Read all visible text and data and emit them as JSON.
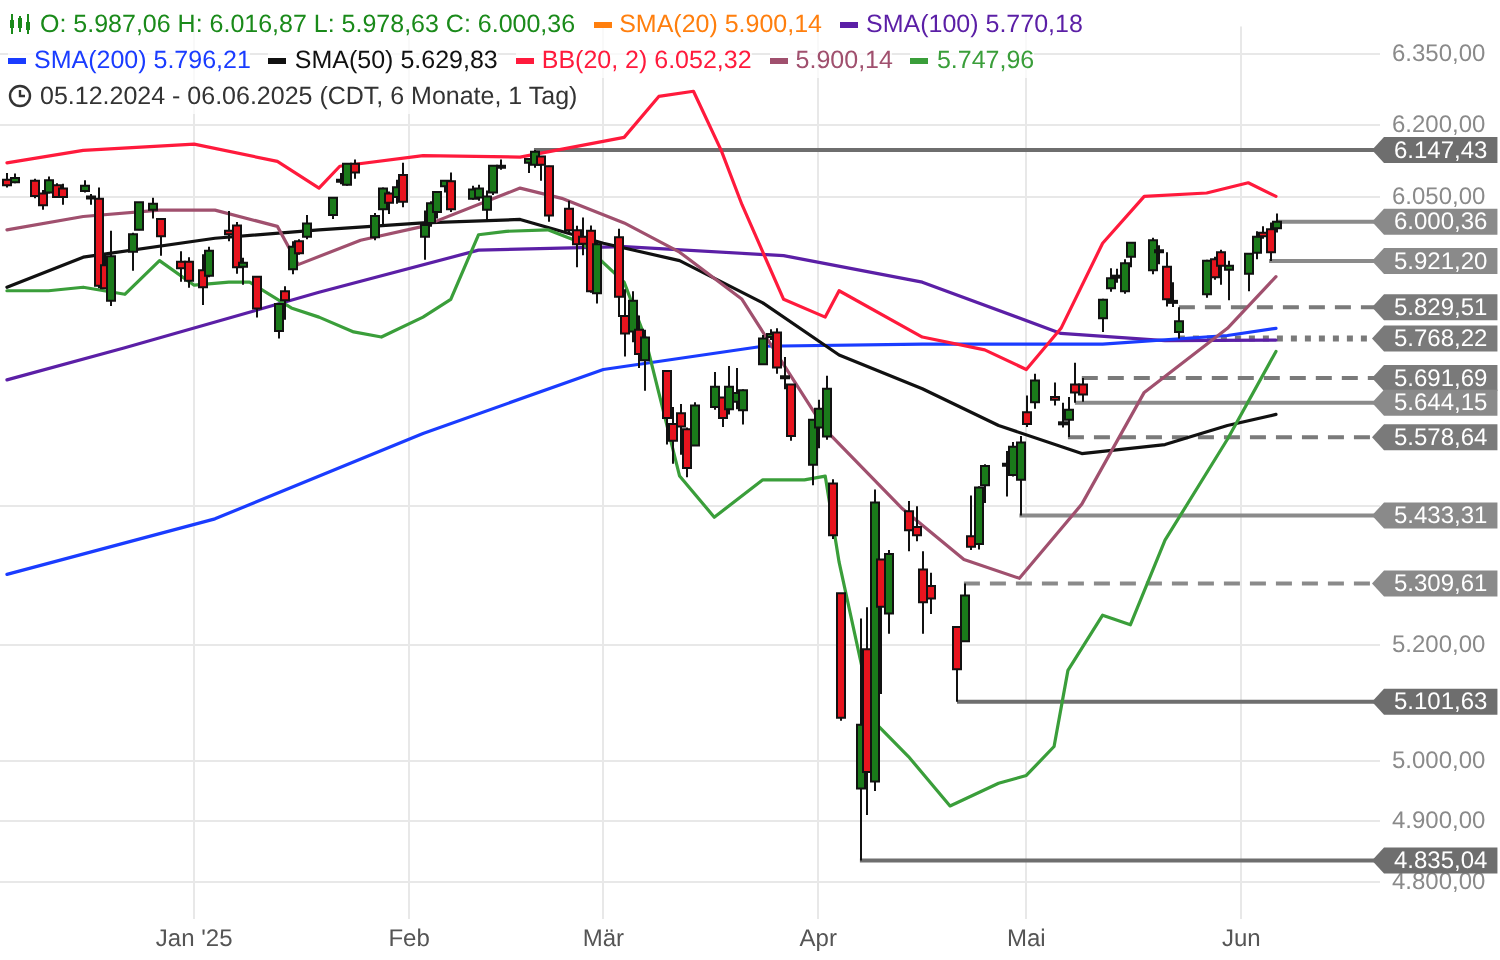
{
  "chart_data": {
    "type": "candlestick",
    "title": "O: 5.987,06  H: 6.016,87  L: 5.978,63  C: 6.000,36",
    "subtitle": "05.12.2024 - 06.06.2025  (CDT, 6 Monate, 1 Tag)",
    "x": [
      "2024-12-05",
      "2024-12-06",
      "2024-12-09",
      "2024-12-10",
      "2024-12-11",
      "2024-12-12",
      "2024-12-13",
      "2024-12-16",
      "2024-12-17",
      "2024-12-18",
      "2024-12-19",
      "2024-12-20",
      "2024-12-23",
      "2024-12-24",
      "2024-12-26",
      "2024-12-27",
      "2024-12-30",
      "2024-12-31",
      "2025-01-02",
      "2025-01-03",
      "2025-01-06",
      "2025-01-07",
      "2025-01-08",
      "2025-01-10",
      "2025-01-13",
      "2025-01-14",
      "2025-01-15",
      "2025-01-16",
      "2025-01-17",
      "2025-01-21",
      "2025-01-22",
      "2025-01-23",
      "2025-01-24",
      "2025-01-27",
      "2025-01-28",
      "2025-01-29",
      "2025-01-30",
      "2025-01-31",
      "2025-02-03",
      "2025-02-04",
      "2025-02-05",
      "2025-02-06",
      "2025-02-07",
      "2025-02-10",
      "2025-02-11",
      "2025-02-12",
      "2025-02-13",
      "2025-02-14",
      "2025-02-18",
      "2025-02-19",
      "2025-02-20",
      "2025-02-21",
      "2025-02-24",
      "2025-02-25",
      "2025-02-26",
      "2025-02-27",
      "2025-02-28",
      "2025-03-03",
      "2025-03-04",
      "2025-03-05",
      "2025-03-06",
      "2025-03-07",
      "2025-03-10",
      "2025-03-11",
      "2025-03-12",
      "2025-03-13",
      "2025-03-14",
      "2025-03-17",
      "2025-03-18",
      "2025-03-19",
      "2025-03-20",
      "2025-03-21",
      "2025-03-24",
      "2025-03-25",
      "2025-03-26",
      "2025-03-27",
      "2025-03-28",
      "2025-03-31",
      "2025-04-01",
      "2025-04-02",
      "2025-04-03",
      "2025-04-04",
      "2025-04-07",
      "2025-04-08",
      "2025-04-09",
      "2025-04-10",
      "2025-04-11",
      "2025-04-14",
      "2025-04-15",
      "2025-04-16",
      "2025-04-17",
      "2025-04-21",
      "2025-04-22",
      "2025-04-23",
      "2025-04-24",
      "2025-04-25",
      "2025-04-28",
      "2025-04-29",
      "2025-04-30",
      "2025-05-01",
      "2025-05-02",
      "2025-05-05",
      "2025-05-06",
      "2025-05-07",
      "2025-05-08",
      "2025-05-09",
      "2025-05-12",
      "2025-05-13",
      "2025-05-14",
      "2025-05-15",
      "2025-05-16",
      "2025-05-19",
      "2025-05-20",
      "2025-05-21",
      "2025-05-22",
      "2025-05-23",
      "2025-05-27",
      "2025-05-28",
      "2025-05-29",
      "2025-05-30",
      "2025-06-02",
      "2025-06-03",
      "2025-06-04",
      "2025-06-05",
      "2025-06-06"
    ],
    "ohlc": [
      [
        6086,
        6100,
        6070,
        6075
      ],
      [
        6081,
        6099,
        6079,
        6090
      ],
      [
        6084,
        6088,
        6048,
        6053
      ],
      [
        6058,
        6065,
        6025,
        6034
      ],
      [
        6060,
        6093,
        6058,
        6085
      ],
      [
        6075,
        6079,
        6050,
        6051
      ],
      [
        6068,
        6078,
        6035,
        6051
      ],
      [
        6063,
        6085,
        6060,
        6074
      ],
      [
        6052,
        6057,
        6035,
        6050
      ],
      [
        6047,
        6070,
        5867,
        5872
      ],
      [
        5913,
        5935,
        5866,
        5867
      ],
      [
        5842,
        5982,
        5832,
        5931
      ],
      [
        5940,
        5978,
        5902,
        5975
      ],
      [
        5984,
        6040,
        5983,
        6040
      ],
      [
        6025,
        6049,
        6007,
        6037
      ],
      [
        6006,
        6006,
        5932,
        5971
      ],
      [
        5920,
        5941,
        5880,
        5907
      ],
      [
        5920,
        5929,
        5868,
        5882
      ],
      [
        5903,
        5935,
        5834,
        5869
      ],
      [
        5892,
        5950,
        5889,
        5942
      ],
      [
        5982,
        6022,
        5961,
        5975
      ],
      [
        5993,
        6000,
        5896,
        5909
      ],
      [
        5910,
        5928,
        5874,
        5918
      ],
      [
        5890,
        5891,
        5809,
        5827
      ],
      [
        5783,
        5838,
        5768.22,
        5836
      ],
      [
        5861,
        5871,
        5805,
        5843
      ],
      [
        5905,
        5961,
        5895,
        5950
      ],
      [
        5961,
        5965,
        5934,
        5937
      ],
      [
        5970,
        6014,
        5965,
        5997
      ],
      [
        6014,
        6051,
        6006,
        6049
      ],
      [
        6082,
        6100,
        6077,
        6086
      ],
      [
        6076,
        6119,
        6074,
        6119
      ],
      [
        6119,
        6128,
        6088,
        6101
      ],
      [
        5969,
        6018,
        5963,
        6012
      ],
      [
        6026,
        6070,
        5994,
        6068
      ],
      [
        6058,
        6062,
        6016,
        6039
      ],
      [
        6051,
        6086,
        6037,
        6071
      ],
      [
        6096,
        6121,
        6030,
        6041
      ],
      [
        5970,
        6023,
        5924,
        5994
      ],
      [
        5998,
        6042,
        5990,
        6038
      ],
      [
        6020,
        6062,
        6007,
        6061
      ],
      [
        6073,
        6085,
        6060,
        6084
      ],
      [
        6083,
        6101,
        6020,
        6026
      ],
      [
        6047,
        6074,
        6045,
        6066
      ],
      [
        6050,
        6076,
        6043,
        6068
      ],
      [
        6025,
        6064,
        6003,
        6052
      ],
      [
        6060,
        6116,
        6055,
        6115
      ],
      [
        6115,
        6128,
        6107,
        6115
      ],
      [
        6121,
        6129,
        6100,
        6129
      ],
      [
        6117,
        6147.43,
        6111,
        6144
      ],
      [
        6134,
        6134,
        6084,
        6117
      ],
      [
        6114,
        6115,
        6000.36,
        6013
      ],
      [
        6027,
        6043,
        5977,
        5983
      ],
      [
        5983,
        5992,
        5909,
        5955
      ],
      [
        5970,
        6009,
        5933,
        5956
      ],
      [
        5982,
        5993,
        5858,
        5861
      ],
      [
        5857,
        5959,
        5837,
        5955
      ],
      [
        5969,
        5986,
        5810,
        5850
      ],
      [
        5812,
        5865,
        5733,
        5778
      ],
      [
        5782,
        5861,
        5761,
        5842
      ],
      [
        5785,
        5813,
        5711,
        5738
      ],
      [
        5726,
        5785,
        5667,
        5770
      ],
      [
        5705,
        5706,
        5565,
        5615
      ],
      [
        5604,
        5636,
        5529,
        5572
      ],
      [
        5624,
        5642,
        5546,
        5599
      ],
      [
        5594,
        5597,
        5504,
        5521
      ],
      [
        5563,
        5645,
        5563,
        5639
      ],
      [
        5636,
        5703,
        5631,
        5675
      ],
      [
        5654,
        5654,
        5598,
        5615
      ],
      [
        5632,
        5715,
        5622,
        5675
      ],
      [
        5646,
        5711,
        5632,
        5663
      ],
      [
        5630,
        5670,
        5603,
        5668
      ],
      [
        5718,
        5775,
        5718,
        5768
      ],
      [
        5771,
        5786,
        5765,
        5777
      ],
      [
        5780,
        5788,
        5700,
        5712
      ],
      [
        5695,
        5732,
        5670,
        5693
      ],
      [
        5679,
        5679,
        5572,
        5581
      ],
      [
        5527,
        5613,
        5489,
        5612
      ],
      [
        5597,
        5650,
        5558,
        5633
      ],
      [
        5580,
        5696,
        5574,
        5671
      ],
      [
        5492,
        5500,
        5390,
        5397
      ],
      [
        5292,
        5292,
        5069,
        5074
      ],
      [
        4954,
        5247,
        4835.04,
        5062
      ],
      [
        5193,
        5267,
        4910,
        4982
      ],
      [
        4966,
        5481,
        4950,
        5457
      ],
      [
        5353,
        5353,
        5115,
        5268
      ],
      [
        5256,
        5370,
        5220,
        5363
      ],
      [
        5441,
        5460,
        5368,
        5406
      ],
      [
        5412,
        5450,
        5386,
        5397
      ],
      [
        5335,
        5368,
        5220,
        5276
      ],
      [
        5305,
        5329,
        5255,
        5283
      ],
      [
        5232,
        5233,
        5101.63,
        5158
      ],
      [
        5207,
        5309.61,
        5207,
        5288
      ],
      [
        5395,
        5470,
        5370,
        5376
      ],
      [
        5381,
        5487,
        5371,
        5485
      ],
      [
        5489,
        5528,
        5456,
        5525
      ],
      [
        5529,
        5553,
        5468,
        5529
      ],
      [
        5508,
        5570,
        5505,
        5561
      ],
      [
        5499,
        5581,
        5433.31,
        5569
      ],
      [
        5626,
        5658,
        5598,
        5604
      ],
      [
        5645,
        5700,
        5633,
        5687
      ],
      [
        5655,
        5683,
        5639,
        5650
      ],
      [
        5607,
        5644,
        5597,
        5607
      ],
      [
        5612,
        5655,
        5579,
        5631
      ],
      [
        5679,
        5721,
        5644,
        5664
      ],
      [
        5679,
        5691.69,
        5646,
        5660
      ],
      [
        5808,
        5846,
        5781,
        5844
      ],
      [
        5867,
        5907,
        5860,
        5887
      ],
      [
        5889,
        5906,
        5878,
        5892
      ],
      [
        5861,
        5925,
        5856,
        5917
      ],
      [
        5930,
        5959,
        5909,
        5958
      ],
      [
        5903,
        5968,
        5895,
        5963
      ],
      [
        5943,
        5953,
        5915,
        5940
      ],
      [
        5910,
        5939,
        5831,
        5845
      ],
      [
        5840,
        5879,
        5830,
        5842
      ],
      [
        5781,
        5829.51,
        5768,
        5802
      ],
      [
        5855,
        5924,
        5848,
        5922
      ],
      [
        5925,
        5930,
        5884,
        5889
      ],
      [
        5939,
        5944,
        5874,
        5912
      ],
      [
        5904,
        5922,
        5843,
        5912
      ],
      [
        5896,
        5937,
        5861,
        5936
      ],
      [
        5938,
        5981,
        5925,
        5970
      ],
      [
        5978,
        5991,
        5966,
        5971
      ],
      [
        5985,
        5999,
        5921.2,
        5939
      ],
      [
        5987.06,
        6016.87,
        5978.63,
        6000.36
      ]
    ],
    "series": [
      {
        "type": "line",
        "name": "SMA(100)  5.770,18",
        "color": "#5b1fa6",
        "x": [
          "2024-12-05",
          "2024-12-22",
          "2025-01-19",
          "2025-02-11",
          "2025-03-04",
          "2025-03-27",
          "2025-04-16",
          "2025-05-06",
          "2025-05-21",
          "2025-06-06"
        ],
        "values": [
          5688,
          5750,
          5859,
          5943,
          5950,
          5932,
          5879,
          5778,
          5764,
          5765
        ]
      },
      {
        "type": "line",
        "name": "SMA(200)  5.796,21",
        "color": "#1a3cff",
        "x": [
          "2024-12-05",
          "2025-01-04",
          "2025-02-03",
          "2025-03-01",
          "2025-03-24",
          "2025-04-16",
          "2025-05-12",
          "2025-05-30",
          "2025-06-06"
        ],
        "values": [
          5326,
          5427,
          5586,
          5708,
          5753,
          5757,
          5757,
          5774,
          5788
        ]
      },
      {
        "type": "line",
        "name": "SMA(50)  5.629,83",
        "color": "#111111",
        "x": [
          "2024-12-05",
          "2024-12-16",
          "2025-01-04",
          "2025-01-19",
          "2025-02-03",
          "2025-02-17",
          "2025-03-01",
          "2025-03-12",
          "2025-03-24",
          "2025-04-04",
          "2025-04-16",
          "2025-04-27",
          "2025-05-09",
          "2025-05-21",
          "2025-05-30",
          "2025-06-06"
        ],
        "values": [
          5869,
          5929,
          5967,
          5984,
          5998,
          6005,
          5957,
          5922,
          5838,
          5736,
          5671,
          5601,
          5548,
          5565,
          5601,
          5622
        ]
      },
      {
        "type": "line",
        "name": "BB(20, 2)  6.052,32",
        "color": "#ff1a3c",
        "x": [
          "2024-12-05",
          "2024-12-16",
          "2025-01-01",
          "2025-01-13",
          "2025-01-19",
          "2025-01-22",
          "2025-02-03",
          "2025-02-17",
          "2025-03-04",
          "2025-03-09",
          "2025-03-14",
          "2025-03-18",
          "2025-03-21",
          "2025-03-27",
          "2025-04-02",
          "2025-04-04",
          "2025-04-16",
          "2025-04-25",
          "2025-05-01",
          "2025-05-06",
          "2025-05-12",
          "2025-05-18",
          "2025-05-27",
          "2025-06-02",
          "2025-06-06"
        ],
        "values": [
          6121,
          6147,
          6160,
          6124,
          6069,
          6114,
          6136,
          6133,
          6174,
          6260,
          6271,
          6147,
          6035,
          5845,
          5810,
          5862,
          5771,
          5746,
          5708,
          5788,
          5957,
          6052,
          6059,
          6080,
          6052
        ]
      },
      {
        "type": "line",
        "name": "5.900,14",
        "color": "#a0506e",
        "x": [
          "2024-12-05",
          "2024-12-16",
          "2024-12-27",
          "2025-01-04",
          "2025-01-13",
          "2025-01-16",
          "2025-01-25",
          "2025-02-03",
          "2025-02-17",
          "2025-02-23",
          "2025-03-04",
          "2025-03-12",
          "2025-03-21",
          "2025-04-02",
          "2025-04-13",
          "2025-04-22",
          "2025-04-30",
          "2025-05-09",
          "2025-05-18",
          "2025-05-30",
          "2025-06-06"
        ],
        "values": [
          5984,
          6011,
          6024,
          6024,
          5991,
          5914,
          5963,
          5991,
          6069,
          6048,
          5998,
          5939,
          5845,
          5593,
          5447,
          5353,
          5319,
          5454,
          5664,
          5788,
          5890
        ]
      },
      {
        "type": "line",
        "name": "5.747,96",
        "color": "#3a9e3a",
        "x": [
          "2024-12-05",
          "2024-12-11",
          "2024-12-16",
          "2024-12-22",
          "2024-12-27",
          "2025-01-01",
          "2025-01-06",
          "2025-01-09",
          "2025-01-15",
          "2025-01-19",
          "2025-01-24",
          "2025-01-28",
          "2025-02-03",
          "2025-02-07",
          "2025-02-11",
          "2025-02-15",
          "2025-02-21",
          "2025-02-26",
          "2025-03-04",
          "2025-03-07",
          "2025-03-12",
          "2025-03-17",
          "2025-03-24",
          "2025-03-30",
          "2025-04-02",
          "2025-04-04",
          "2025-04-09",
          "2025-04-14",
          "2025-04-20",
          "2025-04-27",
          "2025-05-01",
          "2025-05-05",
          "2025-05-07",
          "2025-05-12",
          "2025-05-16",
          "2025-05-21",
          "2025-05-30",
          "2025-06-06"
        ],
        "values": [
          5862,
          5862,
          5869,
          5855,
          5922,
          5873,
          5879,
          5879,
          5828,
          5810,
          5781,
          5771,
          5810,
          5845,
          5974,
          5981,
          5984,
          5957,
          5879,
          5771,
          5506,
          5430,
          5499,
          5499,
          5506,
          5348,
          5068,
          5008,
          4925,
          4963,
          4976,
          5025,
          5156,
          5253,
          5236,
          5388,
          5575,
          5743
        ]
      }
    ],
    "xlim": [
      "2024-12-04",
      "2025-06-21"
    ],
    "xticks": [
      {
        "value": "2025-01-01",
        "label": "Jan '25"
      },
      {
        "value": "2025-02-01",
        "label": "Feb"
      },
      {
        "value": "2025-03-01",
        "label": "Mär"
      },
      {
        "value": "2025-04-01",
        "label": "Apr"
      },
      {
        "value": "2025-05-01",
        "label": "Mai"
      },
      {
        "value": "2025-06-01",
        "label": "Jun"
      }
    ],
    "ylim": [
      4740,
      6410
    ],
    "yticks": [
      {
        "value": 4800,
        "label": "4.800,00"
      },
      {
        "value": 4900,
        "label": "4.900,00"
      },
      {
        "value": 5000,
        "label": "5.000,00"
      },
      {
        "value": 5200,
        "label": "5.200,00"
      },
      {
        "value": 5450,
        "label": null
      },
      {
        "value": 6050,
        "label": "6.050,00"
      },
      {
        "value": 6200,
        "label": "6.200,00"
      },
      {
        "value": 6350,
        "label": "6.350,00"
      }
    ],
    "ref_lines": [
      {
        "axis": "y",
        "value": 6147.43,
        "label": "6.147,43",
        "color": "#6e6e6e",
        "line_style": "solid"
      },
      {
        "axis": "y",
        "value": 6000.36,
        "label": "6.000,36",
        "color": "#8a8a8a",
        "line_style": "solid"
      },
      {
        "axis": "y",
        "value": 5921.2,
        "label": "5.921,20",
        "color": "#8a8a8a",
        "line_style": "solid"
      },
      {
        "axis": "y",
        "value": 5829.51,
        "label": "5.829,51",
        "color": "#7a7a7a",
        "line_style": "dashed"
      },
      {
        "axis": "y",
        "value": 5768.22,
        "label": "5.768,22",
        "color": "#7a7a7a",
        "line_style": "dotted"
      },
      {
        "axis": "y",
        "value": 5691.69,
        "label": "5.691,69",
        "color": "#7a7a7a",
        "line_style": "dashed"
      },
      {
        "axis": "y",
        "value": 5644.15,
        "label": "5.644,15",
        "color": "#8a8a8a",
        "line_style": "solid"
      },
      {
        "axis": "y",
        "value": 5578.64,
        "label": "5.578,64",
        "color": "#7a7a7a",
        "line_style": "dashed"
      },
      {
        "axis": "y",
        "value": 5433.31,
        "label": "5.433,31",
        "color": "#8a8a8a",
        "line_style": "solid"
      },
      {
        "axis": "y",
        "value": 5309.61,
        "label": "5.309,61",
        "color": "#8a8a8a",
        "line_style": "dashed"
      },
      {
        "axis": "y",
        "value": 5101.63,
        "label": "5.101,63",
        "color": "#6e6e6e",
        "line_style": "solid"
      },
      {
        "axis": "y",
        "value": 4835.04,
        "label": "4.835,04",
        "color": "#6e6e6e",
        "line_style": "solid"
      }
    ],
    "annotations": [
      "SMA(20)  5.900,14"
    ],
    "grid": true,
    "legend": "top left",
    "marker": "none",
    "log": "y"
  }
}
